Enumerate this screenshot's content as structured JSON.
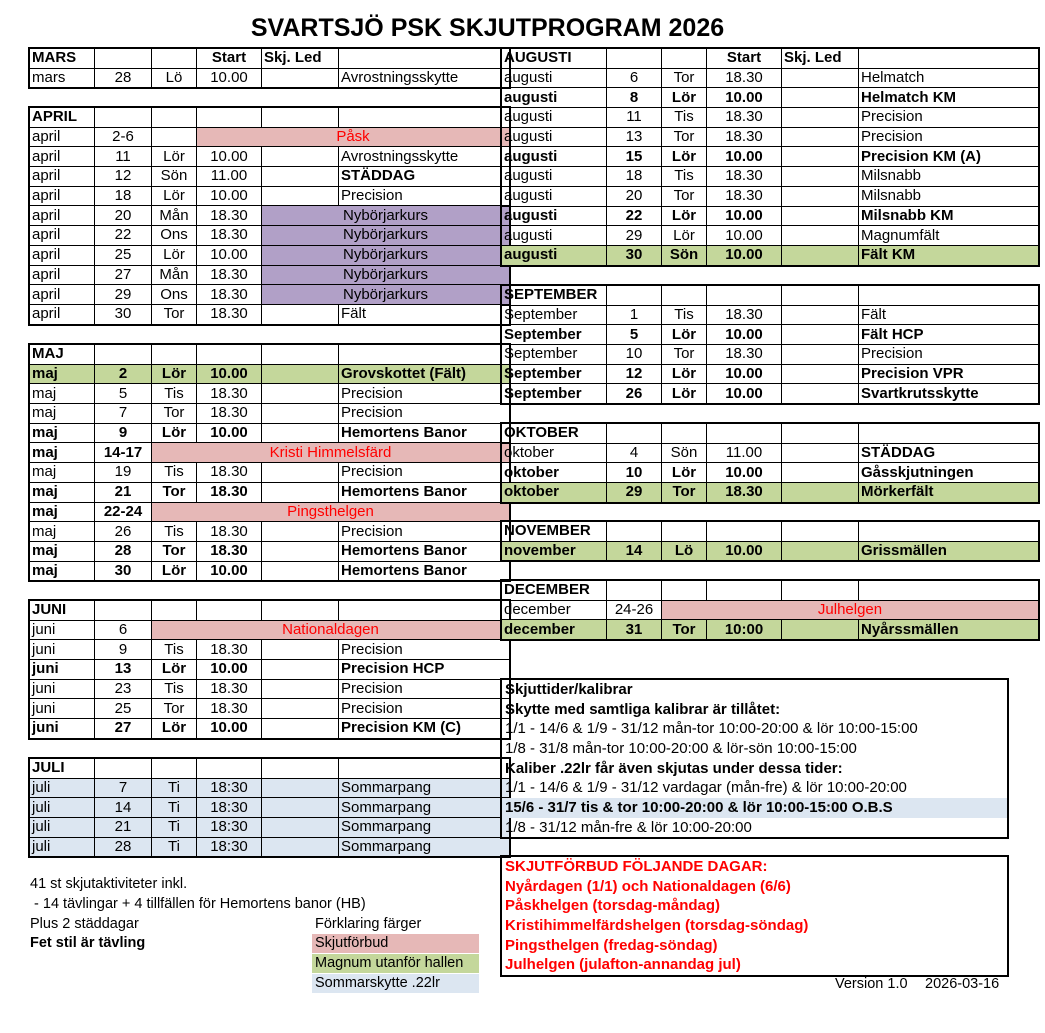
{
  "title": "SVARTSJÖ PSK SKJUTPROGRAM 2026",
  "colors": {
    "holiday": "#e6b8b7",
    "course": "#b1a0c7",
    "magnum": "#c4d79b",
    "summer": "#dce6f1",
    "ban_text": "#ff0000"
  },
  "left": [
    {
      "header": [
        "MARS",
        "",
        "",
        "Start",
        "Skj. Led",
        ""
      ],
      "rows": [
        {
          "c": [
            "mars",
            "28",
            "Lö",
            "10.00",
            "",
            "Avrostningsskytte"
          ]
        }
      ]
    },
    {
      "header": [
        "APRIL",
        "",
        "",
        "",
        "",
        ""
      ],
      "rows": [
        {
          "c": [
            "april",
            "2-6"
          ],
          "span": {
            "from": 3,
            "text": "Påsk",
            "kind": "red"
          }
        },
        {
          "c": [
            "april",
            "11",
            "Lör",
            "10.00",
            "",
            "Avrostningsskytte"
          ]
        },
        {
          "c": [
            "april",
            "12",
            "Sön",
            "11.00",
            "",
            "STÄDDAG"
          ],
          "boldLast": true
        },
        {
          "c": [
            "april",
            "18",
            "Lör",
            "10.00",
            "",
            "Precision"
          ]
        },
        {
          "c": [
            "april",
            "20",
            "Mån",
            "18.30"
          ],
          "span": {
            "from": 4,
            "text": "Nybörjarkurs",
            "kind": "purple"
          }
        },
        {
          "c": [
            "april",
            "22",
            "Ons",
            "18.30"
          ],
          "span": {
            "from": 4,
            "text": "Nybörjarkurs",
            "kind": "purple"
          }
        },
        {
          "c": [
            "april",
            "25",
            "Lör",
            "10.00"
          ],
          "span": {
            "from": 4,
            "text": "Nybörjarkurs",
            "kind": "purple"
          }
        },
        {
          "c": [
            "april",
            "27",
            "Mån",
            "18.30"
          ],
          "span": {
            "from": 4,
            "text": "Nybörjarkurs",
            "kind": "purple"
          }
        },
        {
          "c": [
            "april",
            "29",
            "Ons",
            "18.30"
          ],
          "span": {
            "from": 4,
            "text": "Nybörjarkurs",
            "kind": "purple"
          }
        },
        {
          "c": [
            "april",
            "30",
            "Tor",
            "18.30",
            "",
            "Fält"
          ]
        }
      ]
    },
    {
      "header": [
        "MAJ",
        "",
        "",
        "",
        "",
        ""
      ],
      "rows": [
        {
          "c": [
            "maj",
            "2",
            "Lör",
            "10.00",
            "",
            "Grovskottet (Fält)"
          ],
          "style": "green"
        },
        {
          "c": [
            "maj",
            "5",
            "Tis",
            "18.30",
            "",
            "Precision"
          ]
        },
        {
          "c": [
            "maj",
            "7",
            "Tor",
            "18.30",
            "",
            "Precision"
          ]
        },
        {
          "c": [
            "maj",
            "9",
            "Lör",
            "10.00",
            "",
            "Hemortens Banor"
          ],
          "style": "bold"
        },
        {
          "c": [
            "maj",
            "14-17"
          ],
          "span": {
            "from": 2,
            "text": "Kristi Himmelsfärd",
            "kind": "red"
          },
          "style": "bold"
        },
        {
          "c": [
            "maj",
            "19",
            "Tis",
            "18.30",
            "",
            "Precision"
          ]
        },
        {
          "c": [
            "maj",
            "21",
            "Tor",
            "18.30",
            "",
            "Hemortens Banor"
          ],
          "style": "bold"
        },
        {
          "c": [
            "maj",
            "22-24"
          ],
          "span": {
            "from": 2,
            "text": "Pingsthelgen",
            "kind": "red"
          },
          "boldDay": true
        },
        {
          "c": [
            "maj",
            "26",
            "Tis",
            "18.30",
            "",
            "Precision"
          ]
        },
        {
          "c": [
            "maj",
            "28",
            "Tor",
            "18.30",
            "",
            "Hemortens Banor"
          ],
          "style": "bold"
        },
        {
          "c": [
            "maj",
            "30",
            "Lör",
            "10.00",
            "",
            "Hemortens Banor"
          ],
          "style": "bold"
        }
      ]
    },
    {
      "header": [
        "JUNI",
        "",
        "",
        "",
        "",
        ""
      ],
      "rows": [
        {
          "c": [
            "juni",
            "6"
          ],
          "span": {
            "from": 2,
            "text": "Nationaldagen",
            "kind": "red"
          }
        },
        {
          "c": [
            "juni",
            "9",
            "Tis",
            "18.30",
            "",
            "Precision"
          ]
        },
        {
          "c": [
            "juni",
            "13",
            "Lör",
            "10.00",
            "",
            "Precision HCP"
          ],
          "style": "bold"
        },
        {
          "c": [
            "juni",
            "23",
            "Tis",
            "18.30",
            "",
            "Precision"
          ]
        },
        {
          "c": [
            "juni",
            "25",
            "Tor",
            "18.30",
            "",
            "Precision"
          ]
        },
        {
          "c": [
            "juni",
            "27",
            "Lör",
            "10.00",
            "",
            "Precision KM (C)"
          ],
          "style": "bold"
        }
      ]
    },
    {
      "header": [
        "JULI",
        "",
        "",
        "",
        "",
        ""
      ],
      "rows": [
        {
          "c": [
            "juli",
            "7",
            "Ti",
            "18:30",
            "",
            "Sommarpang"
          ],
          "style": "blue"
        },
        {
          "c": [
            "juli",
            "14",
            "Ti",
            "18:30",
            "",
            "Sommarpang"
          ],
          "style": "blue"
        },
        {
          "c": [
            "juli",
            "21",
            "Ti",
            "18:30",
            "",
            "Sommarpang"
          ],
          "style": "blue"
        },
        {
          "c": [
            "juli",
            "28",
            "Ti",
            "18:30",
            "",
            "Sommarpang"
          ],
          "style": "blue"
        }
      ]
    }
  ],
  "right": [
    {
      "header": [
        "AUGUSTI",
        "",
        "",
        "Start",
        "Skj. Led",
        ""
      ],
      "rows": [
        {
          "c": [
            "augusti",
            "6",
            "Tor",
            "18.30",
            "",
            "Helmatch"
          ]
        },
        {
          "c": [
            "augusti",
            "8",
            "Lör",
            "10.00",
            "",
            "Helmatch KM"
          ],
          "style": "bold"
        },
        {
          "c": [
            "augusti",
            "11",
            "Tis",
            "18.30",
            "",
            "Precision"
          ]
        },
        {
          "c": [
            "augusti",
            "13",
            "Tor",
            "18.30",
            "",
            "Precision"
          ]
        },
        {
          "c": [
            "augusti",
            "15",
            "Lör",
            "10.00",
            "",
            "Precision KM (A)"
          ],
          "style": "bold"
        },
        {
          "c": [
            "augusti",
            "18",
            "Tis",
            "18.30",
            "",
            "Milsnabb"
          ]
        },
        {
          "c": [
            "augusti",
            "20",
            "Tor",
            "18.30",
            "",
            "Milsnabb"
          ]
        },
        {
          "c": [
            "augusti",
            "22",
            "Lör",
            "10.00",
            "",
            "Milsnabb KM"
          ],
          "style": "bold"
        },
        {
          "c": [
            "augusti",
            "29",
            "Lör",
            "10.00",
            "",
            "Magnumfält"
          ]
        },
        {
          "c": [
            "augusti",
            "30",
            "Sön",
            "10.00",
            "",
            "Fält KM"
          ],
          "style": "green"
        }
      ]
    },
    {
      "header": [
        "SEPTEMBER",
        "",
        "",
        "",
        "",
        ""
      ],
      "rows": [
        {
          "c": [
            "September",
            "1",
            "Tis",
            "18.30",
            "",
            "Fält"
          ]
        },
        {
          "c": [
            "September",
            "5",
            "Lör",
            "10.00",
            "",
            "Fält HCP"
          ],
          "style": "bold"
        },
        {
          "c": [
            "September",
            "10",
            "Tor",
            "18.30",
            "",
            "Precision"
          ]
        },
        {
          "c": [
            "September",
            "12",
            "Lör",
            "10.00",
            "",
            "Precision VPR"
          ],
          "style": "bold"
        },
        {
          "c": [
            "September",
            "26",
            "Lör",
            "10.00",
            "",
            "Svartkrutsskytte"
          ],
          "style": "bold"
        }
      ]
    },
    {
      "header": [
        "OKTOBER",
        "",
        "",
        "",
        "",
        ""
      ],
      "rows": [
        {
          "c": [
            "oktober",
            "4",
            "Sön",
            "11.00",
            "",
            "STÄDDAG"
          ],
          "boldLast": true
        },
        {
          "c": [
            "oktober",
            "10",
            "Lör",
            "10.00",
            "",
            "Gåsskjutningen"
          ],
          "style": "bold"
        },
        {
          "c": [
            "oktober",
            "29",
            "Tor",
            "18.30",
            "",
            "Mörkerfält"
          ],
          "style": "green"
        }
      ]
    },
    {
      "header": [
        "NOVEMBER",
        "",
        "",
        "",
        "",
        ""
      ],
      "rows": [
        {
          "c": [
            "november",
            "14",
            "Lö",
            "10.00",
            "",
            "Grissmällen"
          ],
          "style": "green"
        }
      ]
    },
    {
      "header": [
        "DECEMBER",
        "",
        "",
        "",
        "",
        ""
      ],
      "rows": [
        {
          "c": [
            "december",
            "24-26"
          ],
          "span": {
            "from": 2,
            "text": "Julhelgen",
            "kind": "red"
          }
        },
        {
          "c": [
            "december",
            "31",
            "Tor",
            "10:00",
            "",
            "Nyårssmällen"
          ],
          "style": "green"
        }
      ]
    }
  ],
  "times": {
    "heading": "Skjuttider/kalibrar",
    "all_calibers": "Skytte med samtliga kalibrar är tillåtet:",
    "all_1": "1/1 - 14/6 & 1/9 - 31/12 mån-tor 10:00-20:00 & lör 10:00-15:00",
    "all_2": "1/8 - 31/8 mån-tor 10:00-20:00 & lör-sön 10:00-15:00",
    "lr22": "Kaliber .22lr får även skjutas under dessa tider:",
    "lr_1": "1/1 - 14/6 & 1/9 - 31/12 vardagar (mån-fre) & lör 10:00-20:00",
    "lr_2": "15/6 - 31/7 tis & tor 10:00-20:00 & lör 10:00-15:00  O.B.S",
    "lr_3": "1/8 - 31/12 mån-fre & lör 10:00-20:00"
  },
  "ban": {
    "heading": "SKJUTFÖRBUD FÖLJANDE DAGAR:",
    "items": [
      "Nyårdagen (1/1) och Nationaldagen (6/6)",
      "Påskhelgen (torsdag-måndag)",
      "Kristihimmelfärdshelgen (torsdag-söndag)",
      "Pingsthelgen (fredag-söndag)",
      "Julhelgen (julafton-annandag jul)"
    ]
  },
  "notes": {
    "count": "41 st skjutaktiviteter inkl.",
    "competitions": " - 14 tävlingar + 4 tillfällen för Hemortens banor (HB)",
    "cleaning": "Plus 2 städdagar",
    "bold_note": "Fet stil är tävling",
    "legend_title": "Förklaring färger",
    "legend_ban": "Skjutförbud",
    "legend_magnum": "Magnum utanför hallen",
    "legend_summer": "Sommarskytte .22lr"
  },
  "version": "Version 1.0",
  "date": "2026-03-16"
}
